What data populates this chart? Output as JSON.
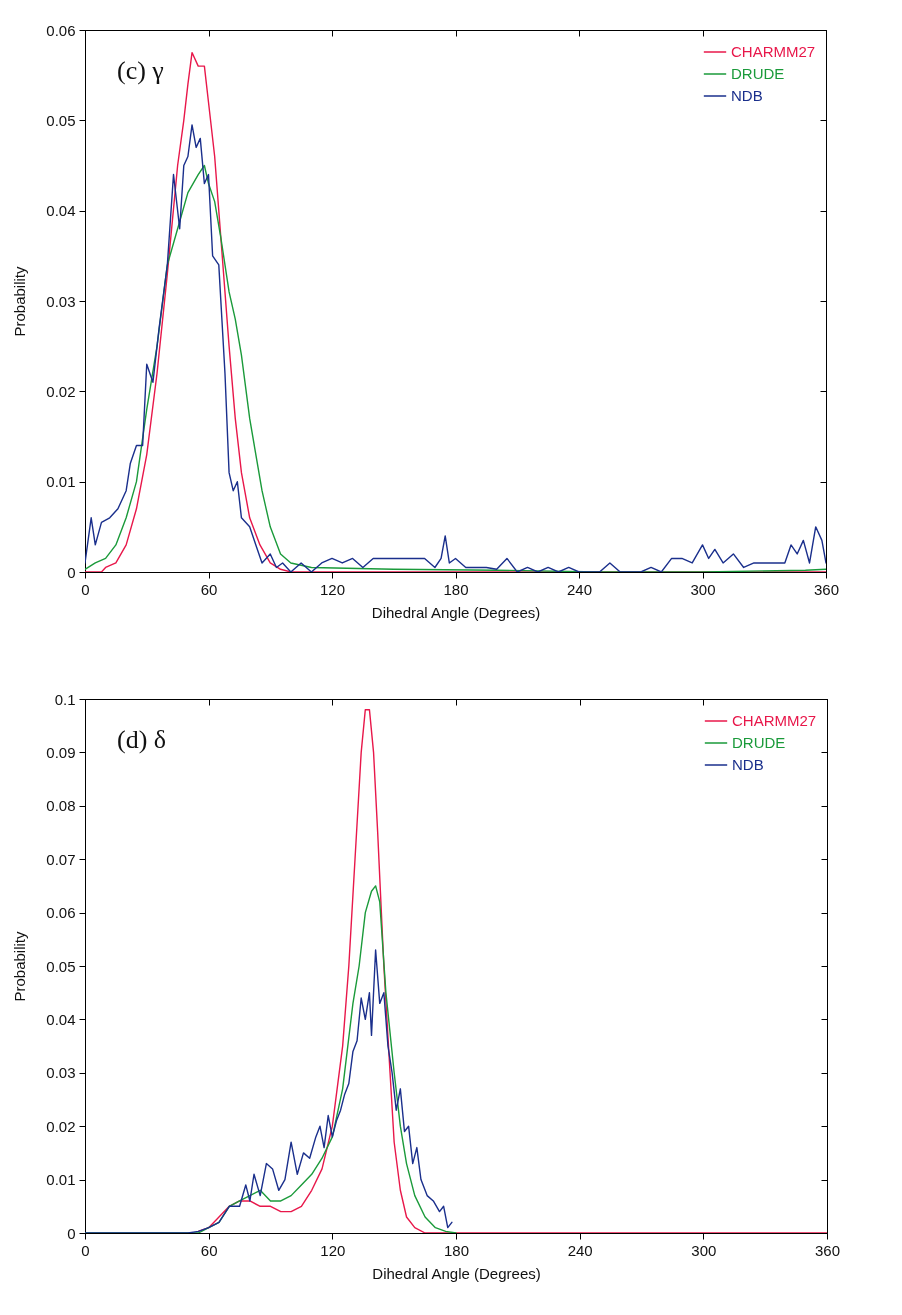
{
  "chart_data": [
    {
      "type": "line",
      "annotations": [
        "(c) γ"
      ],
      "xlabel": "Dihedral Angle (Degrees)",
      "ylabel": "Probability",
      "xlim": [
        0,
        360
      ],
      "xticks": [
        0,
        60,
        120,
        180,
        240,
        300,
        360
      ],
      "ylim": [
        0,
        0.06
      ],
      "yticks": [
        0,
        0.01,
        0.02,
        0.03,
        0.04,
        0.05,
        0.06
      ],
      "legend": "top right",
      "grid": false,
      "series": [
        {
          "name": "CHARMM27",
          "color": "#e8174a",
          "x": [
            0,
            8,
            10,
            15,
            20,
            25,
            30,
            35,
            40,
            45,
            48,
            50,
            52,
            55,
            58,
            60,
            63,
            66,
            70,
            73,
            76,
            80,
            85,
            90,
            95,
            100,
            150,
            200,
            250,
            300,
            360
          ],
          "values": [
            0,
            0,
            0.0005,
            0.001,
            0.003,
            0.007,
            0.013,
            0.022,
            0.033,
            0.045,
            0.05,
            0.054,
            0.0575,
            0.056,
            0.056,
            0.052,
            0.046,
            0.037,
            0.025,
            0.017,
            0.011,
            0.006,
            0.003,
            0.001,
            0.0003,
            0,
            0,
            0,
            0,
            0,
            0
          ]
        },
        {
          "name": "DRUDE",
          "color": "#1a9a3a",
          "x": [
            0,
            5,
            10,
            15,
            20,
            25,
            30,
            35,
            40,
            45,
            50,
            55,
            58,
            60,
            63,
            66,
            70,
            73,
            76,
            80,
            83,
            86,
            90,
            95,
            100,
            110,
            150,
            200,
            250,
            300,
            350,
            360
          ],
          "values": [
            0.0003,
            0.001,
            0.0015,
            0.003,
            0.006,
            0.01,
            0.018,
            0.025,
            0.034,
            0.038,
            0.042,
            0.044,
            0.045,
            0.043,
            0.041,
            0.037,
            0.031,
            0.028,
            0.024,
            0.017,
            0.013,
            0.009,
            0.005,
            0.002,
            0.001,
            0.0005,
            0.0003,
            0.0002,
            0,
            0,
            0.0002,
            0.0003
          ]
        },
        {
          "name": "NDB",
          "color": "#1a2f8c",
          "x": [
            0,
            3,
            5,
            8,
            12,
            16,
            20,
            22,
            25,
            28,
            30,
            33,
            36,
            40,
            43,
            46,
            48,
            50,
            52,
            54,
            56,
            58,
            60,
            62,
            65,
            68,
            70,
            72,
            74,
            76,
            80,
            83,
            86,
            90,
            93,
            96,
            100,
            105,
            110,
            115,
            120,
            125,
            130,
            135,
            140,
            145,
            150,
            155,
            160,
            165,
            170,
            173,
            175,
            177,
            180,
            185,
            190,
            195,
            200,
            205,
            210,
            215,
            220,
            225,
            230,
            235,
            240,
            245,
            250,
            255,
            260,
            265,
            270,
            275,
            280,
            285,
            290,
            295,
            300,
            303,
            306,
            310,
            315,
            320,
            325,
            330,
            335,
            340,
            343,
            346,
            349,
            352,
            355,
            358,
            360
          ],
          "values": [
            0.001,
            0.006,
            0.003,
            0.0055,
            0.006,
            0.007,
            0.009,
            0.012,
            0.014,
            0.014,
            0.023,
            0.021,
            0.027,
            0.034,
            0.044,
            0.038,
            0.045,
            0.046,
            0.0495,
            0.047,
            0.048,
            0.043,
            0.044,
            0.035,
            0.034,
            0.022,
            0.011,
            0.009,
            0.01,
            0.006,
            0.005,
            0.003,
            0.001,
            0.002,
            0.0005,
            0.001,
            0,
            0.001,
            0,
            0.001,
            0.0015,
            0.001,
            0.0015,
            0.0005,
            0.0015,
            0.0015,
            0.0015,
            0.0015,
            0.0015,
            0.0015,
            0.0005,
            0.0015,
            0.004,
            0.001,
            0.0015,
            0.0005,
            0.0005,
            0.0005,
            0.0003,
            0.0015,
            0,
            0.0005,
            0,
            0.0005,
            0,
            0.0005,
            0,
            0,
            0,
            0.001,
            0,
            0,
            0,
            0.0005,
            0,
            0.0015,
            0.0015,
            0.001,
            0.003,
            0.0015,
            0.0025,
            0.001,
            0.002,
            0.0005,
            0.001,
            0.001,
            0.001,
            0.001,
            0.003,
            0.002,
            0.0035,
            0.001,
            0.005,
            0.0035,
            0.001
          ]
        }
      ]
    },
    {
      "type": "line",
      "annotations": [
        "(d) δ"
      ],
      "xlabel": "Dihedral Angle (Degrees)",
      "ylabel": "Probability",
      "xlim": [
        0,
        360
      ],
      "xticks": [
        0,
        60,
        120,
        180,
        240,
        300,
        360
      ],
      "ylim": [
        0,
        0.1
      ],
      "yticks": [
        0,
        0.01,
        0.02,
        0.03,
        0.04,
        0.05,
        0.06,
        0.07,
        0.08,
        0.09,
        0.1
      ],
      "legend": "top right",
      "grid": false,
      "series": [
        {
          "name": "CHARMM27",
          "color": "#e8174a",
          "x": [
            55,
            60,
            65,
            70,
            75,
            80,
            85,
            90,
            95,
            100,
            105,
            110,
            115,
            120,
            125,
            128,
            131,
            134,
            136,
            138,
            140,
            142,
            145,
            148,
            150,
            153,
            156,
            160,
            165,
            240,
            360
          ],
          "values": [
            0.0003,
            0.001,
            0.003,
            0.005,
            0.006,
            0.006,
            0.005,
            0.005,
            0.004,
            0.004,
            0.005,
            0.008,
            0.012,
            0.02,
            0.035,
            0.05,
            0.07,
            0.09,
            0.098,
            0.098,
            0.09,
            0.075,
            0.05,
            0.03,
            0.017,
            0.008,
            0.003,
            0.001,
            0,
            0,
            0
          ]
        },
        {
          "name": "DRUDE",
          "color": "#1a9a3a",
          "x": [
            0,
            55,
            60,
            65,
            70,
            75,
            80,
            85,
            90,
            95,
            100,
            105,
            110,
            115,
            120,
            125,
            130,
            133,
            136,
            139,
            141,
            143,
            146,
            150,
            153,
            156,
            160,
            165,
            170,
            175,
            180
          ],
          "values": [
            0,
            0,
            0.001,
            0.002,
            0.005,
            0.006,
            0.007,
            0.008,
            0.006,
            0.006,
            0.007,
            0.009,
            0.011,
            0.014,
            0.018,
            0.027,
            0.043,
            0.05,
            0.06,
            0.064,
            0.065,
            0.062,
            0.045,
            0.03,
            0.02,
            0.013,
            0.007,
            0.003,
            0.001,
            0.0003,
            0
          ]
        },
        {
          "name": "NDB",
          "color": "#1a2f8c",
          "x": [
            0,
            50,
            55,
            60,
            65,
            70,
            75,
            78,
            80,
            82,
            85,
            88,
            91,
            94,
            97,
            100,
            103,
            106,
            109,
            112,
            114,
            116,
            118,
            120,
            122,
            124,
            126,
            128,
            130,
            132,
            134,
            136,
            138,
            139,
            141,
            143,
            145,
            147,
            149,
            151,
            153,
            155,
            157,
            159,
            161,
            163,
            166,
            169,
            172,
            174,
            176,
            178
          ],
          "values": [
            0,
            0,
            0.0003,
            0.001,
            0.002,
            0.005,
            0.005,
            0.009,
            0.006,
            0.011,
            0.007,
            0.013,
            0.012,
            0.008,
            0.01,
            0.017,
            0.011,
            0.015,
            0.014,
            0.018,
            0.02,
            0.016,
            0.022,
            0.018,
            0.021,
            0.023,
            0.026,
            0.028,
            0.034,
            0.036,
            0.044,
            0.04,
            0.045,
            0.037,
            0.053,
            0.043,
            0.045,
            0.035,
            0.03,
            0.023,
            0.027,
            0.019,
            0.02,
            0.013,
            0.016,
            0.01,
            0.007,
            0.006,
            0.004,
            0.005,
            0.001,
            0.002
          ]
        }
      ]
    }
  ]
}
